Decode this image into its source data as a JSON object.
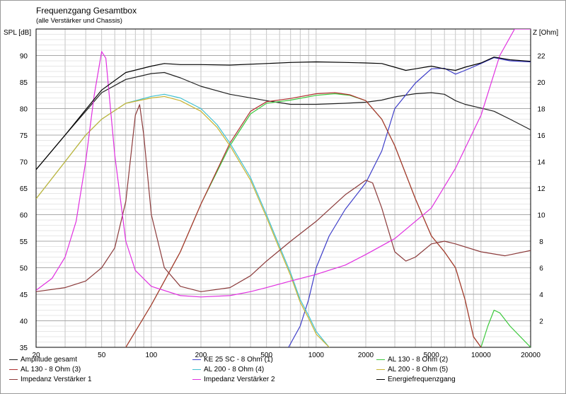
{
  "chart_data": {
    "type": "line",
    "title": "Frequenzgang Gesamtbox",
    "subtitle": "(alle Verstärker und Chassis)",
    "ylabel_left": "SPL [dB]",
    "ylabel_right": "Z [Ohm]",
    "x_scale": "log",
    "xlim": [
      20,
      20000
    ],
    "ylim_left": [
      35,
      95
    ],
    "ylim_right": [
      0,
      24
    ],
    "x_ticks": [
      20,
      50,
      100,
      200,
      500,
      1000,
      2000,
      5000,
      10000,
      20000
    ],
    "y_ticks_left": [
      35,
      40,
      45,
      50,
      55,
      60,
      65,
      70,
      75,
      80,
      85,
      90
    ],
    "y_ticks_right": [
      2,
      4,
      6,
      8,
      10,
      12,
      14,
      16,
      18,
      20,
      22
    ],
    "grid": true,
    "series": [
      {
        "name": "Amplitude gesamt",
        "color": "#202020",
        "axis": "left",
        "points": [
          [
            20,
            68.5
          ],
          [
            30,
            75
          ],
          [
            40,
            79.5
          ],
          [
            50,
            83
          ],
          [
            70,
            85.5
          ],
          [
            100,
            86.6
          ],
          [
            120,
            86.8
          ],
          [
            150,
            85.8
          ],
          [
            200,
            84.2
          ],
          [
            300,
            82.7
          ],
          [
            500,
            81.5
          ],
          [
            700,
            80.8
          ],
          [
            1000,
            80.8
          ],
          [
            1500,
            81
          ],
          [
            2000,
            81.2
          ],
          [
            2500,
            81.6
          ],
          [
            3000,
            82.2
          ],
          [
            4000,
            82.8
          ],
          [
            5000,
            83
          ],
          [
            6000,
            82.7
          ],
          [
            7000,
            81.5
          ],
          [
            8000,
            80.8
          ],
          [
            10000,
            80.1
          ],
          [
            12000,
            79.5
          ],
          [
            15000,
            78
          ],
          [
            20000,
            76
          ]
        ]
      },
      {
        "name": "KE 25 SC - 8 Ohm   (1)",
        "color": "#3c3cc8",
        "axis": "left",
        "points": [
          [
            680,
            35
          ],
          [
            800,
            39
          ],
          [
            900,
            44
          ],
          [
            1000,
            50
          ],
          [
            1200,
            56
          ],
          [
            1500,
            61
          ],
          [
            2000,
            66
          ],
          [
            2500,
            72
          ],
          [
            3000,
            80
          ],
          [
            4000,
            84.8
          ],
          [
            5000,
            87.5
          ],
          [
            6000,
            87.6
          ],
          [
            7000,
            86.5
          ],
          [
            8000,
            87.2
          ],
          [
            10000,
            88.5
          ],
          [
            12000,
            89.6
          ],
          [
            15000,
            89
          ],
          [
            20000,
            88.8
          ]
        ]
      },
      {
        "name": "AL 130 - 8 Ohm (2)",
        "color": "#3cc83c",
        "axis": "left",
        "points": [
          [
            70,
            35
          ],
          [
            100,
            43
          ],
          [
            150,
            53
          ],
          [
            200,
            62
          ],
          [
            300,
            73
          ],
          [
            400,
            79
          ],
          [
            500,
            81
          ],
          [
            700,
            81.6
          ],
          [
            1000,
            82.5
          ],
          [
            1300,
            82.8
          ],
          [
            1600,
            82.5
          ],
          [
            2000,
            81.5
          ],
          [
            2500,
            78
          ],
          [
            3000,
            73
          ],
          [
            4000,
            63
          ],
          [
            5000,
            56
          ],
          [
            6000,
            53
          ],
          [
            7000,
            50
          ],
          [
            8000,
            44
          ],
          [
            9000,
            37
          ],
          [
            10000,
            35
          ],
          [
            11000,
            39
          ],
          [
            12000,
            42
          ],
          [
            13000,
            41.5
          ],
          [
            15000,
            39
          ],
          [
            20000,
            35
          ]
        ]
      },
      {
        "name": "AL 130 - 8 Ohm (3)",
        "color": "#b03030",
        "axis": "left",
        "points": [
          [
            70,
            35
          ],
          [
            100,
            43
          ],
          [
            150,
            53
          ],
          [
            200,
            62
          ],
          [
            300,
            73.5
          ],
          [
            400,
            79.5
          ],
          [
            500,
            81.3
          ],
          [
            700,
            81.9
          ],
          [
            1000,
            82.8
          ],
          [
            1300,
            83
          ],
          [
            1600,
            82.6
          ],
          [
            2000,
            81.5
          ],
          [
            2500,
            78
          ],
          [
            3000,
            73
          ],
          [
            4000,
            63
          ],
          [
            5000,
            56
          ],
          [
            6000,
            53
          ],
          [
            7000,
            50
          ],
          [
            8000,
            44
          ],
          [
            9000,
            37
          ],
          [
            10000,
            35
          ]
        ]
      },
      {
        "name": "AL 200 - 8 Ohm (4)",
        "color": "#40c0d0",
        "axis": "left",
        "points": [
          [
            20,
            63
          ],
          [
            30,
            70
          ],
          [
            40,
            75
          ],
          [
            50,
            78
          ],
          [
            70,
            81
          ],
          [
            100,
            82.3
          ],
          [
            120,
            82.7
          ],
          [
            150,
            82
          ],
          [
            200,
            80
          ],
          [
            250,
            77
          ],
          [
            300,
            73.5
          ],
          [
            400,
            67
          ],
          [
            500,
            60
          ],
          [
            600,
            54
          ],
          [
            700,
            49
          ],
          [
            800,
            44
          ],
          [
            900,
            41
          ],
          [
            1000,
            38
          ],
          [
            1200,
            35
          ]
        ]
      },
      {
        "name": "AL 200 - 8 Ohm (5)",
        "color": "#c8b432",
        "axis": "left",
        "points": [
          [
            20,
            63
          ],
          [
            30,
            70
          ],
          [
            40,
            75
          ],
          [
            50,
            78
          ],
          [
            70,
            81
          ],
          [
            100,
            82
          ],
          [
            120,
            82.3
          ],
          [
            150,
            81.5
          ],
          [
            200,
            79.5
          ],
          [
            250,
            76.5
          ],
          [
            300,
            73
          ],
          [
            400,
            66.5
          ],
          [
            500,
            59.5
          ],
          [
            600,
            53.5
          ],
          [
            700,
            48.5
          ],
          [
            800,
            43.5
          ],
          [
            900,
            40.5
          ],
          [
            1000,
            37.5
          ],
          [
            1200,
            35
          ]
        ]
      },
      {
        "name": "Impedanz Verstärker 1",
        "color": "#8b3a3a",
        "axis": "right",
        "points": [
          [
            20,
            4.2
          ],
          [
            30,
            4.5
          ],
          [
            40,
            5
          ],
          [
            50,
            6
          ],
          [
            60,
            7.5
          ],
          [
            70,
            11
          ],
          [
            80,
            17.5
          ],
          [
            85,
            18.3
          ],
          [
            90,
            16
          ],
          [
            100,
            10
          ],
          [
            120,
            6
          ],
          [
            150,
            4.6
          ],
          [
            200,
            4.2
          ],
          [
            300,
            4.5
          ],
          [
            400,
            5.4
          ],
          [
            500,
            6.5
          ],
          [
            700,
            8
          ],
          [
            1000,
            9.5
          ],
          [
            1500,
            11.5
          ],
          [
            2000,
            12.6
          ],
          [
            2200,
            12.4
          ],
          [
            2500,
            10.5
          ],
          [
            3000,
            7.2
          ],
          [
            3500,
            6.5
          ],
          [
            4000,
            6.8
          ],
          [
            5000,
            7.8
          ],
          [
            6000,
            8
          ],
          [
            7000,
            7.8
          ],
          [
            10000,
            7.2
          ],
          [
            14000,
            6.9
          ],
          [
            20000,
            7.3
          ]
        ]
      },
      {
        "name": "Impedanz Verstärker 2",
        "color": "#e030e0",
        "axis": "right",
        "points": [
          [
            20,
            4.3
          ],
          [
            25,
            5.2
          ],
          [
            30,
            6.8
          ],
          [
            35,
            9.5
          ],
          [
            40,
            14
          ],
          [
            45,
            19
          ],
          [
            50,
            22.3
          ],
          [
            53,
            21.8
          ],
          [
            60,
            14.5
          ],
          [
            70,
            8
          ],
          [
            80,
            5.8
          ],
          [
            100,
            4.6
          ],
          [
            150,
            3.9
          ],
          [
            200,
            3.8
          ],
          [
            300,
            3.9
          ],
          [
            400,
            4.2
          ],
          [
            500,
            4.5
          ],
          [
            700,
            5
          ],
          [
            1000,
            5.5
          ],
          [
            1500,
            6.2
          ],
          [
            2000,
            7
          ],
          [
            3000,
            8.2
          ],
          [
            5000,
            10.5
          ],
          [
            7000,
            13.5
          ],
          [
            10000,
            17.5
          ],
          [
            13000,
            22
          ],
          [
            16000,
            24
          ],
          [
            20000,
            24
          ]
        ]
      },
      {
        "name": "Energiefrequenzgang",
        "color": "#000000",
        "axis": "left",
        "points": [
          [
            20,
            68.5
          ],
          [
            30,
            75
          ],
          [
            40,
            79.8
          ],
          [
            50,
            83.5
          ],
          [
            70,
            86.8
          ],
          [
            100,
            88
          ],
          [
            120,
            88.5
          ],
          [
            150,
            88.3
          ],
          [
            200,
            88.3
          ],
          [
            300,
            88.2
          ],
          [
            500,
            88.5
          ],
          [
            700,
            88.7
          ],
          [
            1000,
            88.8
          ],
          [
            1500,
            88.7
          ],
          [
            2000,
            88.6
          ],
          [
            2500,
            88.5
          ],
          [
            3000,
            87.8
          ],
          [
            3500,
            87.2
          ],
          [
            4000,
            87.5
          ],
          [
            5000,
            88
          ],
          [
            6000,
            87.5
          ],
          [
            7000,
            87.2
          ],
          [
            8000,
            87.8
          ],
          [
            10000,
            88.6
          ],
          [
            12000,
            89.7
          ],
          [
            15000,
            89.2
          ],
          [
            20000,
            88.9
          ]
        ]
      }
    ]
  }
}
